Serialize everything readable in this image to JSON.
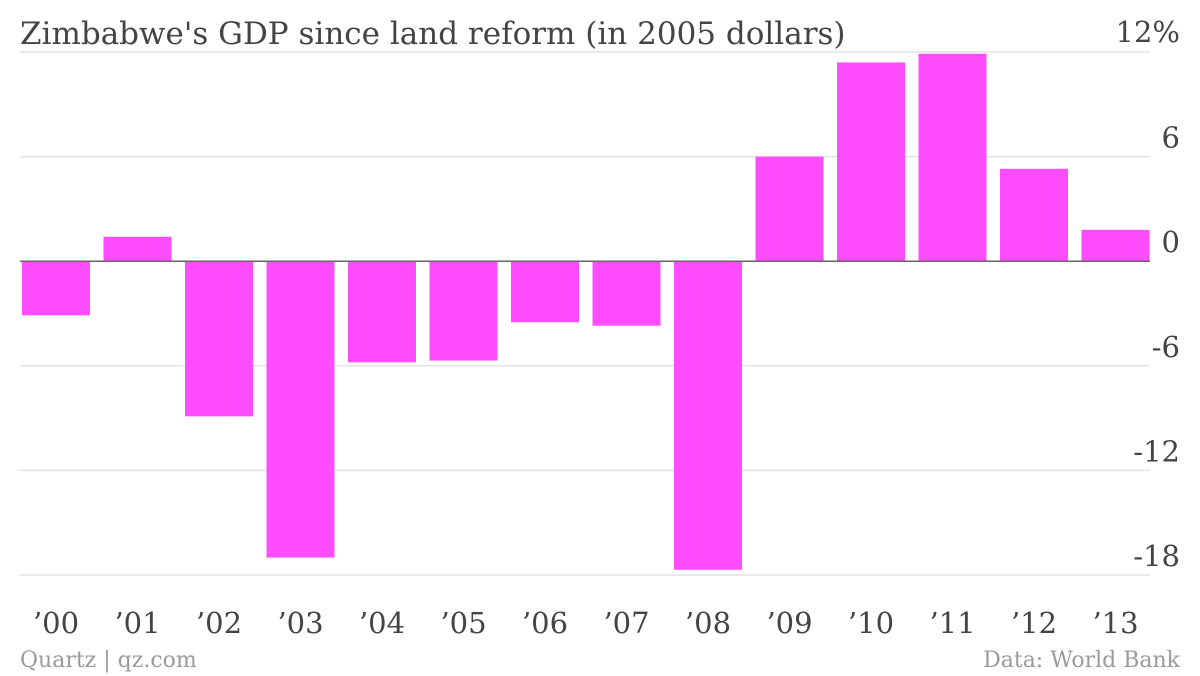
{
  "chart_data": {
    "type": "bar",
    "title": "Zimbabwe's GDP since land reform (in 2005 dollars)",
    "categories": [
      "’00",
      "’01",
      "’02",
      "’03",
      "’04",
      "’05",
      "’06",
      "’07",
      "’08",
      "’09",
      "’10",
      "’11",
      "’12",
      "’13"
    ],
    "values": [
      -3.1,
      1.4,
      -8.9,
      -17.0,
      -5.8,
      -5.7,
      -3.5,
      -3.7,
      -17.7,
      6.0,
      11.4,
      11.9,
      5.3,
      1.8
    ],
    "ylim": [
      -18,
      12
    ],
    "yticks": [
      12,
      6,
      0,
      -6,
      -12,
      -18
    ],
    "ytick_labels": [
      "12%",
      "6",
      "0",
      "-6",
      "-12",
      "-18"
    ],
    "grid": true,
    "bar_color": "#ff4cff",
    "source_left": "Quartz | qz.com",
    "source_right": "Data: World Bank"
  }
}
